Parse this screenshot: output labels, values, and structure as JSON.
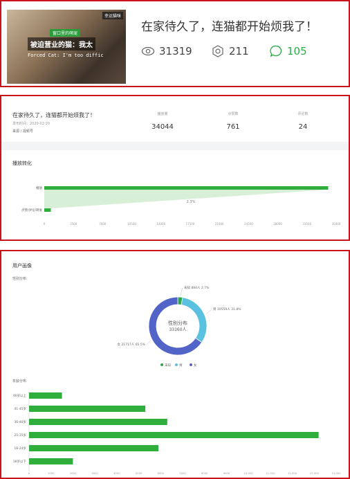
{
  "card": {
    "thumb_badge": "窗口里的萌宠",
    "thumb_corner": "幸运猫咪",
    "thumb_title": "被迫营业的猫：我太",
    "thumb_subtitle": "Forced Cat: I'm too diffic",
    "title": "在家待久了，连猫都开始烦我了！",
    "views": "31319",
    "likes": "211",
    "comments": "105",
    "accent": "#2dab45"
  },
  "summary": {
    "title": "在家待久了，连猫都开始烦我了！",
    "date": "发布时间：2020-02-20",
    "tag": "来源 / 视频号",
    "metrics": [
      {
        "label": "播放量",
        "value": "34044"
      },
      {
        "label": "点赞数",
        "value": "761"
      },
      {
        "label": "评论数",
        "value": "24"
      }
    ]
  },
  "funnel": {
    "title": "播放转化",
    "chart_data": {
      "type": "bar",
      "categories": [
        "播放",
        "点赞/评论/转发"
      ],
      "values": [
        34044,
        785
      ],
      "conversion_label": "2.3%",
      "xlim": [
        0,
        35000
      ],
      "xticks": [
        "0",
        "3500",
        "7000",
        "10500",
        "14000",
        "17500",
        "21000",
        "24500",
        "28000",
        "31500",
        "35000"
      ],
      "color": "#2fae3c"
    }
  },
  "audience": {
    "title": "用户画像",
    "gender_title": "性别分布",
    "gender_chart": {
      "chart_data": {
        "type": "pie",
        "center_title": "性别分布",
        "center_value": "33160人",
        "slices": [
          {
            "name": "未知",
            "value": 884,
            "label": "未知 884人 2.7%",
            "color": "#2ea84a"
          },
          {
            "name": "男",
            "value": 10559,
            "label": "男 10559人 31.8%",
            "color": "#5ac2e0"
          },
          {
            "name": "女",
            "value": 21717,
            "label": "女 21717人 65.5%",
            "color": "#5264c8"
          }
        ],
        "legend": [
          "未知",
          "男",
          "女"
        ]
      }
    },
    "age_title": "年龄分布",
    "age_chart": {
      "chart_data": {
        "type": "bar",
        "categories": [
          "46岁以上",
          "41-45岁",
          "36-40岁",
          "25-35岁",
          "18-24岁",
          "18岁以下"
        ],
        "values": [
          1500,
          5300,
          6300,
          13200,
          5900,
          2000
        ],
        "xlim": [
          0,
          14000
        ],
        "xticks": [
          "0",
          "1000",
          "2000",
          "3000",
          "4000",
          "5000",
          "6000",
          "7000",
          "8000",
          "9000",
          "10,000",
          "11,000",
          "12,000",
          "13,000",
          "14,000"
        ],
        "color": "#2fae3c"
      }
    }
  }
}
